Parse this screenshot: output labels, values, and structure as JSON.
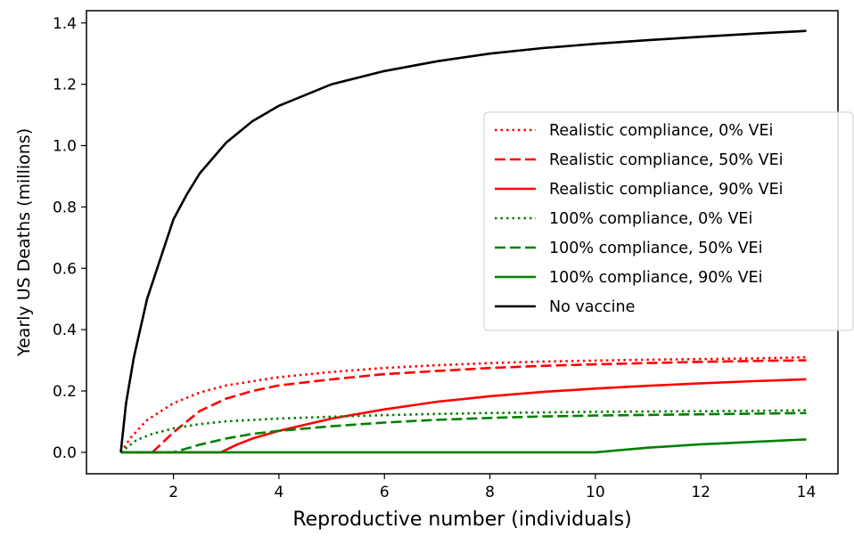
{
  "chart_data": {
    "type": "line",
    "xlabel": "Reproductive number (individuals)",
    "ylabel": "Yearly US Deaths (millions)",
    "xlim": [
      0.35,
      14.6
    ],
    "ylim": [
      -0.07,
      1.44
    ],
    "xticks": [
      2,
      4,
      6,
      8,
      10,
      12,
      14
    ],
    "yticks": [
      0.0,
      0.2,
      0.4,
      0.6,
      0.8,
      1.0,
      1.2,
      1.4
    ],
    "grid": false,
    "legend_position": "center-right",
    "series": [
      {
        "name": "Realistic compliance, 0% VEi",
        "color": "#ff0000",
        "style": "dotted",
        "points": [
          [
            1,
            0
          ],
          [
            1.2,
            0.05
          ],
          [
            1.5,
            0.105
          ],
          [
            2,
            0.16
          ],
          [
            2.5,
            0.195
          ],
          [
            3,
            0.218
          ],
          [
            4,
            0.245
          ],
          [
            5,
            0.262
          ],
          [
            6,
            0.275
          ],
          [
            7,
            0.284
          ],
          [
            8,
            0.291
          ],
          [
            9,
            0.296
          ],
          [
            10,
            0.299
          ],
          [
            11,
            0.302
          ],
          [
            12,
            0.304
          ],
          [
            13,
            0.306
          ],
          [
            14,
            0.31
          ]
        ]
      },
      {
        "name": "Realistic compliance, 50% VEi",
        "color": "#ff0000",
        "style": "dashed",
        "points": [
          [
            1.6,
            0
          ],
          [
            2,
            0.065
          ],
          [
            2.5,
            0.135
          ],
          [
            3,
            0.175
          ],
          [
            3.5,
            0.2
          ],
          [
            4,
            0.218
          ],
          [
            5,
            0.238
          ],
          [
            6,
            0.255
          ],
          [
            7,
            0.265
          ],
          [
            8,
            0.275
          ],
          [
            9,
            0.282
          ],
          [
            10,
            0.287
          ],
          [
            11,
            0.291
          ],
          [
            12,
            0.295
          ],
          [
            13,
            0.298
          ],
          [
            14,
            0.3
          ]
        ]
      },
      {
        "name": "Realistic compliance, 90% VEi",
        "color": "#ff0000",
        "style": "solid",
        "points": [
          [
            1,
            0
          ],
          [
            2.9,
            0
          ],
          [
            3.2,
            0.025
          ],
          [
            3.5,
            0.045
          ],
          [
            4,
            0.07
          ],
          [
            4.5,
            0.09
          ],
          [
            5,
            0.11
          ],
          [
            6,
            0.14
          ],
          [
            7,
            0.165
          ],
          [
            8,
            0.183
          ],
          [
            9,
            0.197
          ],
          [
            10,
            0.208
          ],
          [
            11,
            0.217
          ],
          [
            12,
            0.225
          ],
          [
            13,
            0.232
          ],
          [
            14,
            0.238
          ]
        ]
      },
      {
        "name": "100% compliance, 0% VEi",
        "color": "#008000",
        "style": "dotted",
        "points": [
          [
            1,
            0
          ],
          [
            1.3,
            0.04
          ],
          [
            1.6,
            0.06
          ],
          [
            2,
            0.078
          ],
          [
            2.5,
            0.092
          ],
          [
            3,
            0.101
          ],
          [
            4,
            0.11
          ],
          [
            5,
            0.116
          ],
          [
            6,
            0.121
          ],
          [
            7,
            0.125
          ],
          [
            8,
            0.128
          ],
          [
            9,
            0.13
          ],
          [
            10,
            0.132
          ],
          [
            11,
            0.133
          ],
          [
            12,
            0.134
          ],
          [
            13,
            0.135
          ],
          [
            14,
            0.137
          ]
        ]
      },
      {
        "name": "100% compliance, 50% VEi",
        "color": "#008000",
        "style": "dashed",
        "points": [
          [
            1,
            0
          ],
          [
            2,
            0
          ],
          [
            2.5,
            0.025
          ],
          [
            3,
            0.045
          ],
          [
            3.5,
            0.06
          ],
          [
            4,
            0.07
          ],
          [
            5,
            0.085
          ],
          [
            6,
            0.097
          ],
          [
            7,
            0.106
          ],
          [
            8,
            0.112
          ],
          [
            9,
            0.117
          ],
          [
            10,
            0.12
          ],
          [
            11,
            0.122
          ],
          [
            12,
            0.124
          ],
          [
            13,
            0.126
          ],
          [
            14,
            0.128
          ]
        ]
      },
      {
        "name": "100% compliance, 90% VEi",
        "color": "#008000",
        "style": "solid",
        "points": [
          [
            1,
            0
          ],
          [
            10,
            0
          ],
          [
            11,
            0.015
          ],
          [
            12,
            0.026
          ],
          [
            13,
            0.034
          ],
          [
            14,
            0.042
          ]
        ]
      },
      {
        "name": "No vaccine",
        "color": "#000000",
        "style": "solid",
        "points": [
          [
            1,
            0
          ],
          [
            1.1,
            0.16
          ],
          [
            1.25,
            0.31
          ],
          [
            1.5,
            0.5
          ],
          [
            1.75,
            0.63
          ],
          [
            2,
            0.76
          ],
          [
            2.25,
            0.84
          ],
          [
            2.5,
            0.91
          ],
          [
            3,
            1.01
          ],
          [
            3.5,
            1.08
          ],
          [
            4,
            1.13
          ],
          [
            5,
            1.2
          ],
          [
            6,
            1.243
          ],
          [
            7,
            1.275
          ],
          [
            8,
            1.3
          ],
          [
            9,
            1.318
          ],
          [
            10,
            1.332
          ],
          [
            11,
            1.344
          ],
          [
            12,
            1.355
          ],
          [
            13,
            1.365
          ],
          [
            14,
            1.374
          ]
        ]
      }
    ]
  }
}
